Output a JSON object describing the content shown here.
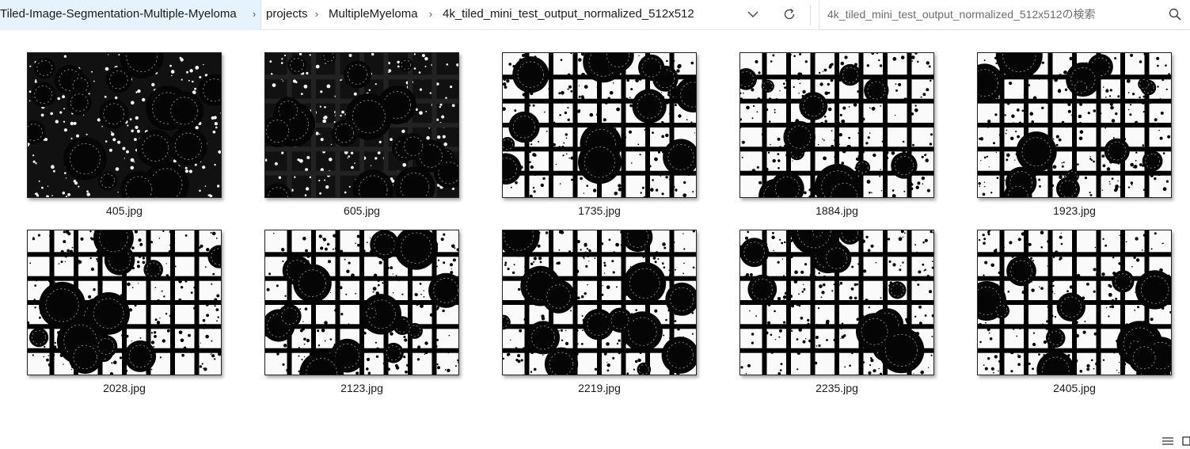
{
  "breadcrumb": {
    "items": [
      "Tiled-Image-Segmentation-Multiple-Myeloma",
      "projects",
      "MultipleMyeloma",
      "4k_tiled_mini_test_output_normalized_512x512"
    ],
    "separator": "›"
  },
  "search": {
    "placeholder": "4k_tiled_mini_test_output_normalized_512x512の検索"
  },
  "icons": {
    "dropdown": "chevron-down-icon",
    "refresh": "refresh-icon",
    "search": "search-icon",
    "details_view": "details-view-icon",
    "tiles_view": "large-icons-view-icon"
  },
  "files": [
    {
      "name": "405.jpg"
    },
    {
      "name": "605.jpg"
    },
    {
      "name": "1735.jpg"
    },
    {
      "name": "1884.jpg"
    },
    {
      "name": "1923.jpg"
    },
    {
      "name": "2028.jpg"
    },
    {
      "name": "2123.jpg"
    },
    {
      "name": "2219.jpg"
    },
    {
      "name": "2235.jpg"
    },
    {
      "name": "2405.jpg"
    }
  ],
  "colors": {
    "selected_crumb_bg": "#e5f3ff",
    "thumbnail_fg": "#000000",
    "thumbnail_bg": "#ffffff"
  }
}
